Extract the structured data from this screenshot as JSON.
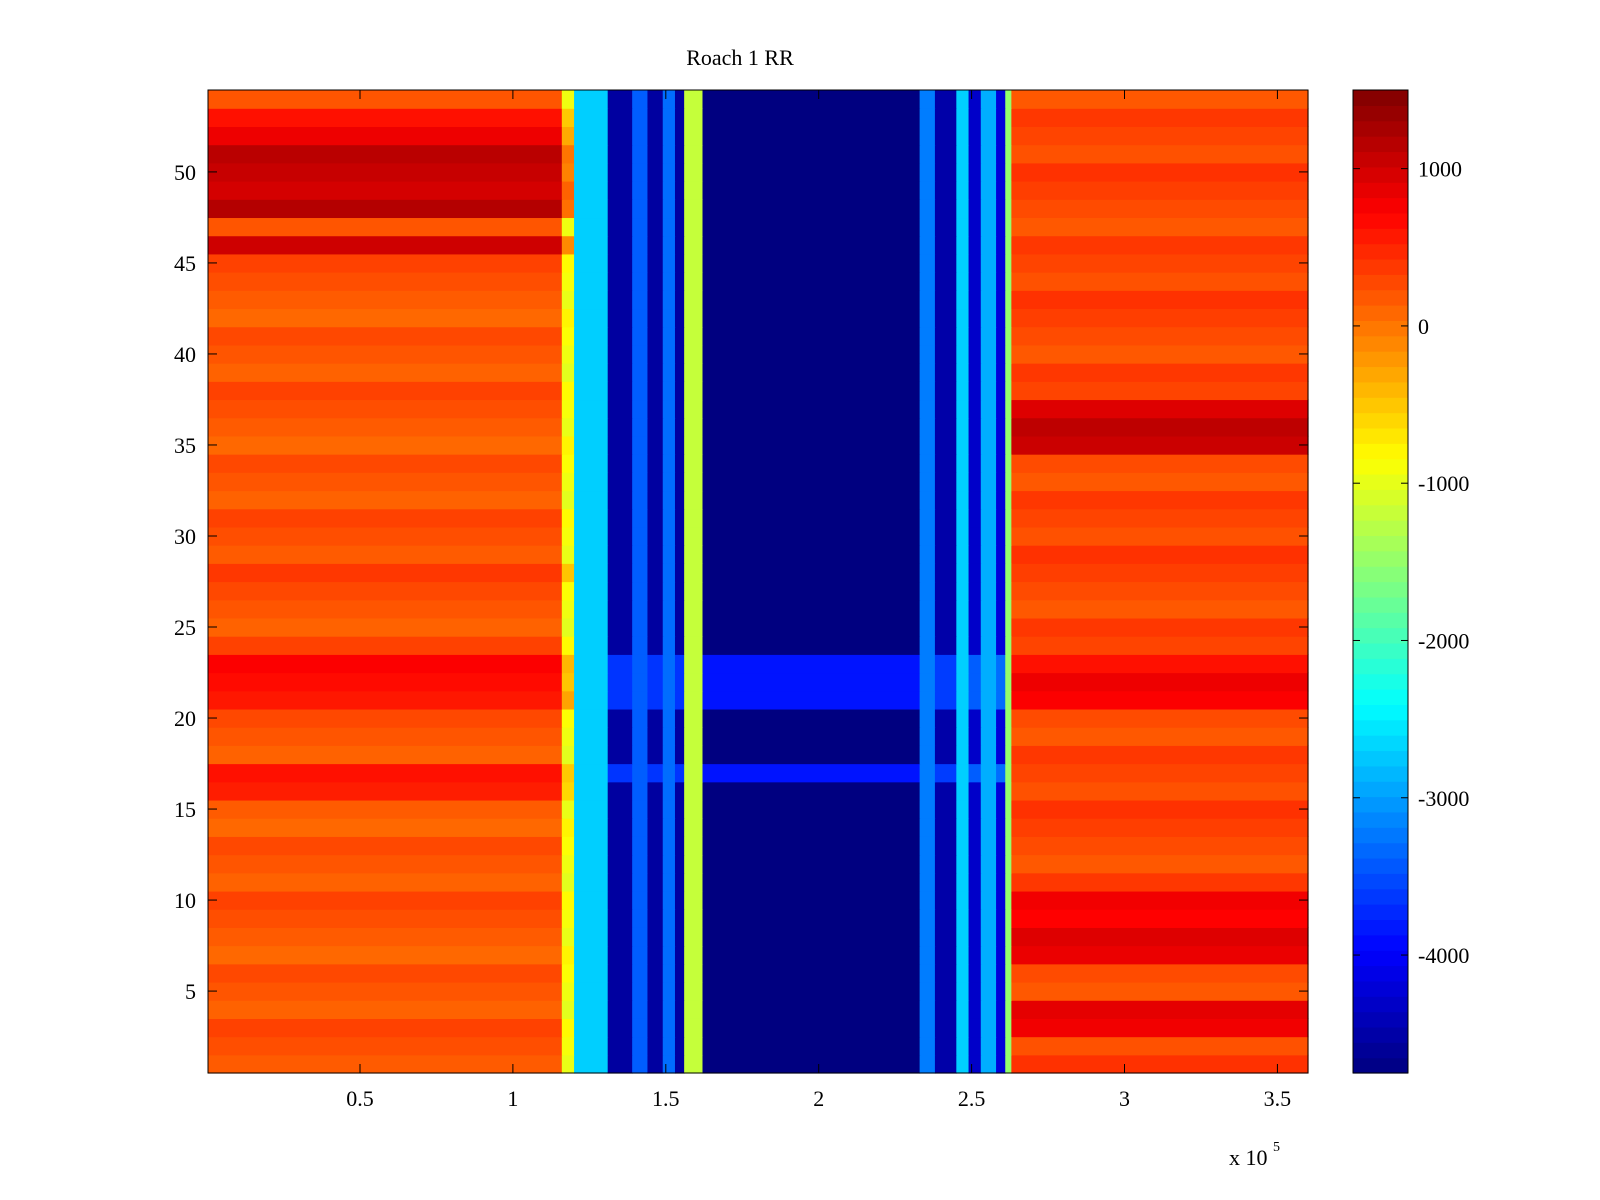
{
  "chart_data": {
    "type": "heatmap",
    "title": "Roach 1 RR",
    "xlabel": "",
    "ylabel": "",
    "x_range": [
      300,
      360000
    ],
    "y_range": [
      0.5,
      54.5
    ],
    "x_ticks": [
      50000,
      100000,
      150000,
      200000,
      250000,
      300000,
      350000
    ],
    "x_tick_labels": [
      "0.5",
      "1",
      "1.5",
      "2",
      "2.5",
      "3",
      "3.5"
    ],
    "x_exponent_label": "x 10",
    "x_exponent_power": "5",
    "y_ticks": [
      5,
      10,
      15,
      20,
      25,
      30,
      35,
      40,
      45,
      50
    ],
    "y_tick_labels": [
      "5",
      "10",
      "15",
      "20",
      "25",
      "30",
      "35",
      "40",
      "45",
      "50"
    ],
    "colorbar": {
      "range": [
        -4750,
        1500
      ],
      "ticks": [
        1000,
        0,
        -1000,
        -2000,
        -3000,
        -4000
      ],
      "tick_labels": [
        "1000",
        "0",
        "-1000",
        "-2000",
        "-3000",
        "-4000"
      ],
      "colormap": "jet"
    },
    "rows": 54,
    "column_bands": [
      {
        "x_start": 300,
        "x_end": 116000,
        "value": 200
      },
      {
        "x_start": 116000,
        "x_end": 120000,
        "value": -900
      },
      {
        "x_start": 120000,
        "x_end": 131000,
        "value": -2700
      },
      {
        "x_start": 131000,
        "x_end": 139000,
        "value": -4550
      },
      {
        "x_start": 139000,
        "x_end": 144000,
        "value": -3400
      },
      {
        "x_start": 144000,
        "x_end": 149000,
        "value": -4550
      },
      {
        "x_start": 149000,
        "x_end": 153000,
        "value": -3300
      },
      {
        "x_start": 153000,
        "x_end": 156000,
        "value": -4550
      },
      {
        "x_start": 156000,
        "x_end": 162000,
        "value": -1200
      },
      {
        "x_start": 162000,
        "x_end": 233000,
        "value": -4750
      },
      {
        "x_start": 233000,
        "x_end": 238000,
        "value": -3200
      },
      {
        "x_start": 238000,
        "x_end": 245000,
        "value": -4500
      },
      {
        "x_start": 245000,
        "x_end": 249000,
        "value": -2700
      },
      {
        "x_start": 249000,
        "x_end": 253000,
        "value": -4300
      },
      {
        "x_start": 253000,
        "x_end": 258000,
        "value": -2900
      },
      {
        "x_start": 258000,
        "x_end": 261000,
        "value": -4200
      },
      {
        "x_start": 261000,
        "x_end": 263000,
        "value": -1500
      },
      {
        "x_start": 263000,
        "x_end": 360000,
        "value": 300
      }
    ],
    "row_offsets_left": [
      {
        "rows": [
          46,
          48,
          49,
          50,
          51
        ],
        "value_offset": 900
      },
      {
        "rows": [
          52,
          53
        ],
        "value_offset": 500
      },
      {
        "rows": [
          28,
          16,
          17
        ],
        "value_offset": 300
      },
      {
        "rows": [
          21,
          22,
          23
        ],
        "value_offset": 500
      }
    ],
    "row_offsets_right": [
      {
        "rows": [
          35,
          36,
          37
        ],
        "value_offset": 700
      },
      {
        "rows": [
          3,
          4,
          7,
          8,
          9,
          10
        ],
        "value_offset": 500
      },
      {
        "rows": [
          21,
          22,
          23
        ],
        "value_offset": 400
      }
    ]
  }
}
